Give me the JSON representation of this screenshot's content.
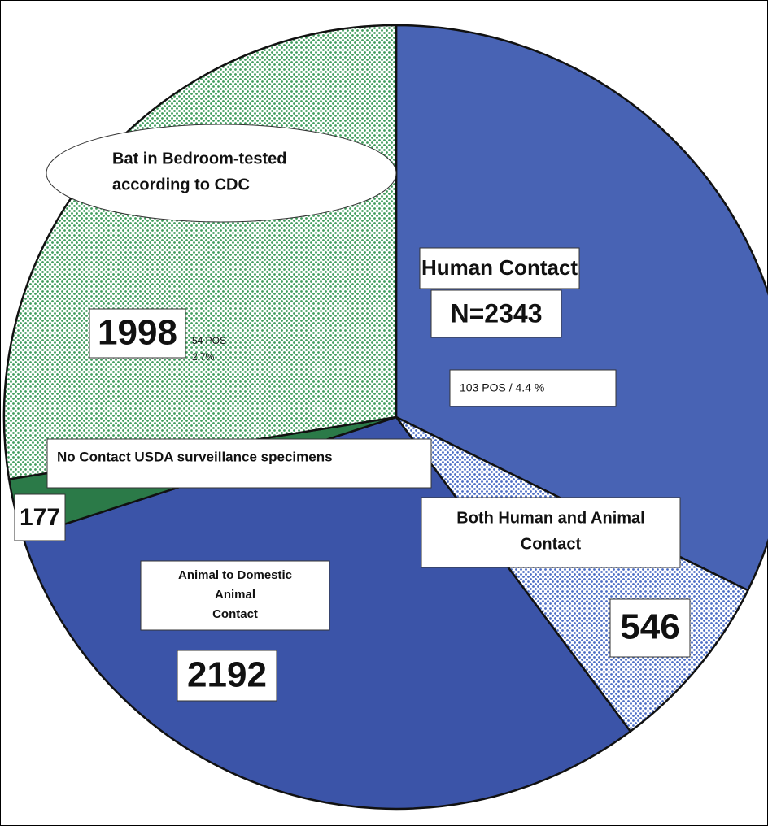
{
  "chart_data": {
    "type": "pie",
    "categories": [
      [
        "Human Contact"
      ],
      [
        "Both Human and Animal",
        "Contact"
      ],
      [
        "Animal to Domestic",
        "Animal",
        "Contact"
      ],
      [
        "No Contact USDA surveillance specimens"
      ],
      [
        "Bat in Bedroom-tested",
        "according to CDC"
      ]
    ],
    "values": [
      2343,
      546,
      2192,
      177,
      1998
    ],
    "value_labels": [
      "N=2343",
      "546",
      "2192",
      "177",
      "1998"
    ],
    "colors": [
      "#4863b4",
      "#4a6cc4",
      "#3b54a8",
      "#2b7a48",
      "#3f9c5c"
    ],
    "dotted": [
      false,
      true,
      false,
      false,
      true
    ],
    "annotations": [
      [
        "103 POS / 4.4 %"
      ],
      [
        "54 POS",
        "2.7%"
      ]
    ]
  }
}
